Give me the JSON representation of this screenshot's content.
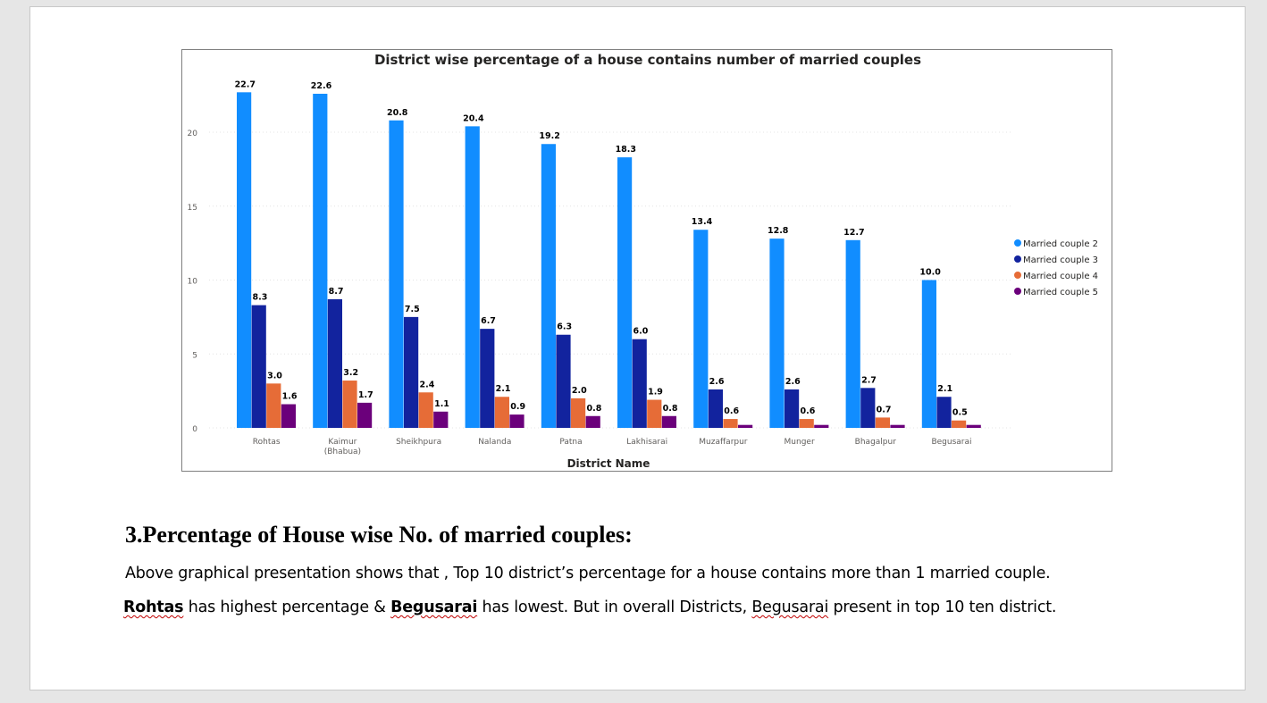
{
  "chart_data": {
    "type": "bar",
    "title": "District wise percentage of a house contains number of married couples",
    "xlabel": "District Name",
    "ylabel": "",
    "ylim": [
      0,
      23.5
    ],
    "yticks": [
      0,
      5,
      10,
      15,
      20
    ],
    "grid": true,
    "legend_position": "right",
    "categories": [
      "Rohtas",
      "Kaimur (Bhabua)",
      "Sheikhpura",
      "Nalanda",
      "Patna",
      "Lakhisarai",
      "Muzaffarpur",
      "Munger",
      "Bhagalpur",
      "Begusarai"
    ],
    "category_lines": [
      [
        "Rohtas"
      ],
      [
        "Kaimur",
        "(Bhabua)"
      ],
      [
        "Sheikhpura"
      ],
      [
        "Nalanda"
      ],
      [
        "Patna"
      ],
      [
        "Lakhisarai"
      ],
      [
        "Muzaffarpur"
      ],
      [
        "Munger"
      ],
      [
        "Bhagalpur"
      ],
      [
        "Begusarai"
      ]
    ],
    "series": [
      {
        "name": "Married couple 2",
        "color": "#118dff",
        "values": [
          22.7,
          22.6,
          20.8,
          20.4,
          19.2,
          18.3,
          13.4,
          12.8,
          12.7,
          10.0
        ],
        "labels": [
          "22.7",
          "22.6",
          "20.8",
          "20.4",
          "19.2",
          "18.3",
          "13.4",
          "12.8",
          "12.7",
          "10.0"
        ]
      },
      {
        "name": "Married couple 3",
        "color": "#12239e",
        "values": [
          8.3,
          8.7,
          7.5,
          6.7,
          6.3,
          6.0,
          2.6,
          2.6,
          2.7,
          2.1
        ],
        "labels": [
          "8.3",
          "8.7",
          "7.5",
          "6.7",
          "6.3",
          "6.0",
          "2.6",
          "2.6",
          "2.7",
          "2.1"
        ]
      },
      {
        "name": "Married couple 4",
        "color": "#e66c37",
        "values": [
          3.0,
          3.2,
          2.4,
          2.1,
          2.0,
          1.9,
          0.6,
          0.6,
          0.7,
          0.5
        ],
        "labels": [
          "3.0",
          "3.2",
          "2.4",
          "2.1",
          "2.0",
          "1.9",
          "0.6",
          "0.6",
          "0.7",
          "0.5"
        ]
      },
      {
        "name": "Married couple 5",
        "color": "#6b007b",
        "values": [
          1.6,
          1.7,
          1.1,
          0.9,
          0.8,
          0.8,
          0.2,
          0.2,
          0.2,
          0.2
        ],
        "labels": [
          "1.6",
          "1.7",
          "1.1",
          "0.9",
          "0.8",
          "0.8",
          "",
          "",
          "",
          ""
        ]
      }
    ]
  },
  "text": {
    "heading": "3.Percentage of House wise No. of married couples:",
    "para1": "Above graphical presentation shows that , Top 10 district’s percentage for a house contains more than 1 married couple.",
    "para2_part1": "Rohtas",
    "para2_part2": " has highest percentage & ",
    "para2_part3": "Begusarai",
    "para2_part4": " has lowest. But in overall Districts, ",
    "para2_part5": "Begusarai",
    "para2_part6": " present in top 10 ten district."
  }
}
